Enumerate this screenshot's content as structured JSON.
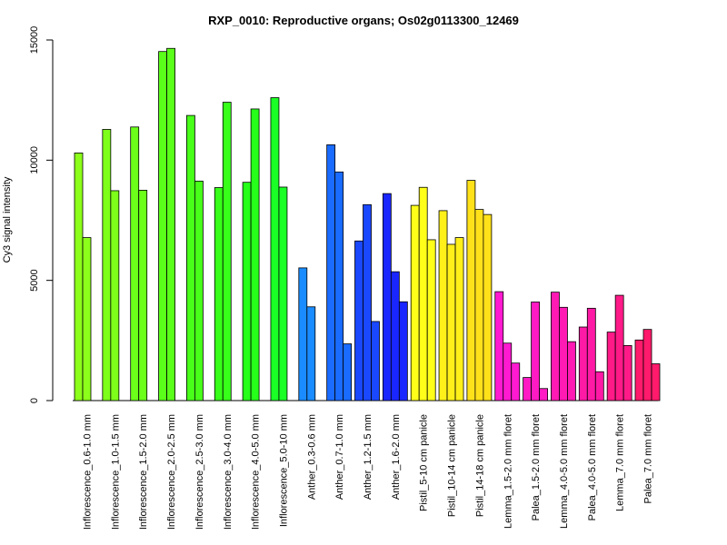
{
  "chart_data": {
    "type": "bar",
    "title": "RXP_0010: Reproductive organs; Os02g0113300_12469",
    "xlabel": "",
    "ylabel": "Cy3 signal intensity",
    "ylim": [
      0,
      15000
    ],
    "yticks": [
      "0",
      "5000",
      "10000",
      "15000"
    ],
    "grid": false,
    "legend": "none",
    "groups": [
      {
        "label": "Inflorescence_0.6-1.0 mm",
        "color": "#8cff1a",
        "values": [
          10300,
          6780
        ]
      },
      {
        "label": "Inflorescence_1.0-1.5 mm",
        "color": "#7dff1a",
        "values": [
          11280,
          8730
        ]
      },
      {
        "label": "Inflorescence_1.5-2.0 mm",
        "color": "#6bff1a",
        "values": [
          11380,
          8750
        ]
      },
      {
        "label": "Inflorescence_2.0-2.5 mm",
        "color": "#5aff1a",
        "values": [
          14520,
          14650
        ]
      },
      {
        "label": "Inflorescence_2.5-3.0 mm",
        "color": "#48ff1a",
        "values": [
          11860,
          9130
        ]
      },
      {
        "label": "Inflorescence_3.0-4.0 mm",
        "color": "#37ff1a",
        "values": [
          8860,
          12410
        ]
      },
      {
        "label": "Inflorescence_4.0-5.0 mm",
        "color": "#26ff1a",
        "values": [
          9080,
          12130
        ]
      },
      {
        "label": "Inflorescence_5.0-10 mm",
        "color": "#1aff26",
        "values": [
          12600,
          8880
        ]
      },
      {
        "label": "Anther_0.3-0.6 mm",
        "color": "#1a8cff",
        "values": [
          5520,
          3900
        ]
      },
      {
        "label": "Anther_0.7-1.0 mm",
        "color": "#1a6bff",
        "values": [
          10640,
          9510,
          2360
        ]
      },
      {
        "label": "Anther_1.2-1.5 mm",
        "color": "#1a48ff",
        "values": [
          6640,
          8150,
          3290
        ]
      },
      {
        "label": "Anther_1.6-2.0 mm",
        "color": "#1a26ff",
        "values": [
          8610,
          5360,
          4110
        ]
      },
      {
        "label": "Pistil_5-10 cm panicle",
        "color": "#ffff1a",
        "values": [
          8120,
          8870,
          6690
        ]
      },
      {
        "label": "Pistil_10-14 cm panicle",
        "color": "#fff01a",
        "values": [
          7900,
          6500,
          6780
        ]
      },
      {
        "label": "Pistil_14-18 cm panicle",
        "color": "#ffe11a",
        "values": [
          9160,
          7950,
          7740
        ]
      },
      {
        "label": "Lemma_1.5-2.0 mm floret",
        "color": "#ff1ad1",
        "values": [
          4530,
          2390,
          1560
        ]
      },
      {
        "label": "Palea_1.5-2.0 mm floret",
        "color": "#ff1ac3",
        "values": [
          960,
          4100,
          500
        ]
      },
      {
        "label": "Lemma_4.0-5.0 mm floret",
        "color": "#ff1ab4",
        "values": [
          4510,
          3880,
          2450
        ]
      },
      {
        "label": "Palea_4.0-5.0 mm floret",
        "color": "#ff1aa6",
        "values": [
          3060,
          3840,
          1200
        ]
      },
      {
        "label": "Lemma_7.0 mm floret",
        "color": "#ff1a88",
        "values": [
          2850,
          4380,
          2290
        ]
      },
      {
        "label": "Palea_7.0 mm floret",
        "color": "#ff1a6b",
        "values": [
          2520,
          2960,
          1530
        ]
      }
    ]
  }
}
